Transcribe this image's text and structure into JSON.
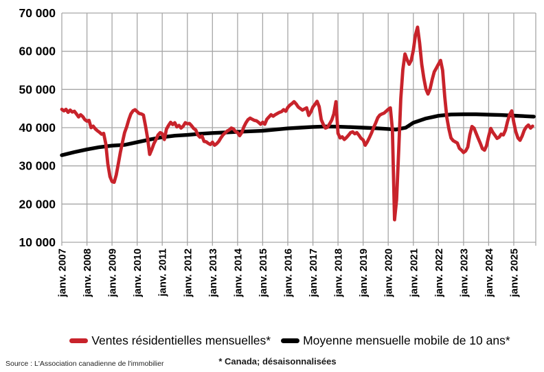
{
  "chart_data": {
    "type": "line",
    "title": "",
    "grid": true,
    "legend_position": "bottom",
    "x_axis": {
      "unit": "month",
      "start": "janv. 2007",
      "tick_labels": [
        "janv. 2007",
        "janv. 2008",
        "janv. 2009",
        "janv. 2010",
        "janv. 2011",
        "janv. 2012",
        "janv. 2013",
        "janv. 2014",
        "janv. 2015",
        "janv. 2016",
        "janv. 2017",
        "janv. 2018",
        "janv. 2019",
        "janv. 2020",
        "janv. 2021",
        "janv. 2022",
        "janv. 2023",
        "janv. 2024",
        "janv. 2025"
      ]
    },
    "y_axis": {
      "min": 10000,
      "max": 70000,
      "step": 10000,
      "tick_labels": [
        "10 000",
        "20 000",
        "30 000",
        "40 000",
        "50 000",
        "60 000",
        "70 000"
      ]
    },
    "series": [
      {
        "name": "Ventes résidentielles mensuelles*",
        "color": "#C8232B",
        "frequency": "monthly",
        "start_year": 2007,
        "values": [
          44800,
          44400,
          44800,
          44000,
          44600,
          44100,
          44300,
          43600,
          42800,
          43400,
          42900,
          42100,
          41700,
          41900,
          40000,
          40400,
          39700,
          39200,
          38800,
          38300,
          38500,
          35800,
          30500,
          27200,
          25900,
          25700,
          27600,
          30600,
          33600,
          36200,
          38700,
          40200,
          42100,
          43600,
          44400,
          44700,
          44200,
          43700,
          43600,
          43300,
          40400,
          37200,
          33000,
          34300,
          35800,
          36900,
          38100,
          38700,
          38400,
          36900,
          39600,
          40600,
          41400,
          40800,
          41300,
          40200,
          40600,
          39900,
          40400,
          41300,
          41000,
          41100,
          40500,
          39800,
          39400,
          38100,
          37500,
          37800,
          36400,
          36300,
          35900,
          35600,
          36200,
          35400,
          35800,
          36400,
          37300,
          38100,
          38600,
          39100,
          39400,
          39900,
          39700,
          39000,
          38700,
          37900,
          38700,
          40200,
          41300,
          42100,
          42500,
          42200,
          41900,
          41800,
          41400,
          40900,
          41400,
          40900,
          42200,
          42800,
          43400,
          43000,
          43400,
          43700,
          44000,
          44200,
          44700,
          44300,
          45300,
          45900,
          46300,
          46800,
          46200,
          45400,
          45000,
          44600,
          44900,
          45200,
          43200,
          44100,
          45400,
          46100,
          46900,
          45500,
          42100,
          40800,
          39900,
          40100,
          41000,
          42000,
          43600,
          46800,
          38500,
          37300,
          37600,
          36900,
          37400,
          38000,
          38700,
          38900,
          38400,
          38700,
          38000,
          37200,
          36800,
          35400,
          36300,
          37400,
          38600,
          40000,
          41200,
          42600,
          43300,
          43600,
          43800,
          44300,
          44800,
          45200,
          39500,
          15900,
          21200,
          34200,
          47600,
          55200,
          59300,
          57800,
          56600,
          57600,
          60300,
          64200,
          66300,
          62200,
          56600,
          53000,
          50100,
          48800,
          50100,
          52600,
          54600,
          55600,
          56600,
          57600,
          55000,
          48100,
          42700,
          39600,
          37300,
          36600,
          36300,
          36000,
          34600,
          34100,
          33500,
          33900,
          34900,
          38100,
          40300,
          39900,
          38500,
          37200,
          35900,
          34500,
          34100,
          35300,
          37700,
          39800,
          38800,
          38000,
          37200,
          37500,
          38300,
          38100,
          39300,
          41600,
          43400,
          44400,
          41400,
          38900,
          37300,
          36700,
          37800,
          39300,
          40200,
          40700,
          39900,
          40400
        ]
      },
      {
        "name": "Moyenne mensuelle mobile de 10 ans*",
        "color": "#000000",
        "frequency": "anchors",
        "points": [
          [
            2007.0,
            32800
          ],
          [
            2007.5,
            33600
          ],
          [
            2008.0,
            34300
          ],
          [
            2008.5,
            34900
          ],
          [
            2009.0,
            35300
          ],
          [
            2009.5,
            35500
          ],
          [
            2010.0,
            36200
          ],
          [
            2010.5,
            36900
          ],
          [
            2011.0,
            37500
          ],
          [
            2011.5,
            37900
          ],
          [
            2012.0,
            38100
          ],
          [
            2012.5,
            38400
          ],
          [
            2013.0,
            38600
          ],
          [
            2013.5,
            38750
          ],
          [
            2014.0,
            38900
          ],
          [
            2014.5,
            39050
          ],
          [
            2015.0,
            39200
          ],
          [
            2015.5,
            39500
          ],
          [
            2016.0,
            39800
          ],
          [
            2016.5,
            40000
          ],
          [
            2017.0,
            40200
          ],
          [
            2017.5,
            40300
          ],
          [
            2018.0,
            40250
          ],
          [
            2018.5,
            40150
          ],
          [
            2019.0,
            40000
          ],
          [
            2019.5,
            39850
          ],
          [
            2020.0,
            39650
          ],
          [
            2020.3,
            39500
          ],
          [
            2020.7,
            40000
          ],
          [
            2021.0,
            41300
          ],
          [
            2021.5,
            42400
          ],
          [
            2022.0,
            43100
          ],
          [
            2022.5,
            43450
          ],
          [
            2023.0,
            43500
          ],
          [
            2023.5,
            43500
          ],
          [
            2024.0,
            43400
          ],
          [
            2024.5,
            43300
          ],
          [
            2025.0,
            43150
          ],
          [
            2025.8,
            42900
          ]
        ]
      }
    ],
    "footnote": "* Canada; désaisonnalisées",
    "source": "Source : L'Association canadienne de l'immobilier"
  },
  "colors": {
    "grid": "#A6A6A6",
    "axis_text": "#000000",
    "background": "#FFFFFF"
  }
}
